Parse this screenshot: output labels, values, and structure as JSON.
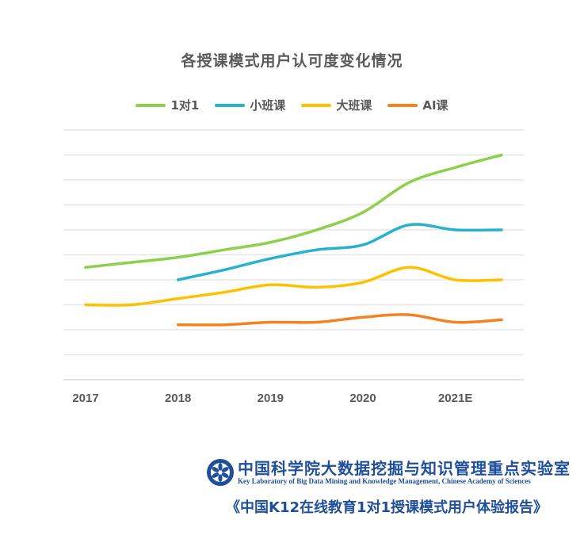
{
  "chart_data": {
    "type": "line",
    "title": "各授课模式用户认可度变化情况",
    "xlabel": "",
    "ylabel": "",
    "x_tick_labels": [
      "2017",
      "2018",
      "2019",
      "2020",
      "2021E"
    ],
    "x": [
      2017,
      2017.5,
      2018,
      2018.5,
      2019,
      2019.5,
      2020,
      2020.5,
      2021,
      2021.5
    ],
    "ylim": [
      0,
      10
    ],
    "y_tick_labels_visible": false,
    "grid": true,
    "legend": "top-center",
    "smooth": true,
    "series": [
      {
        "name": "1对1",
        "color": "#8dd04b",
        "values": [
          4.5,
          4.7,
          4.9,
          5.2,
          5.5,
          6.0,
          6.7,
          7.9,
          8.5,
          9.0
        ]
      },
      {
        "name": "小班课",
        "color": "#27b1cf",
        "values": [
          null,
          null,
          4.0,
          4.4,
          4.85,
          5.2,
          5.4,
          6.2,
          6.0,
          6.0
        ]
      },
      {
        "name": "大班课",
        "color": "#ffc000",
        "values": [
          3.0,
          3.0,
          3.25,
          3.5,
          3.8,
          3.7,
          3.9,
          4.5,
          4.0,
          4.0
        ]
      },
      {
        "name": "AI课",
        "color": "#f5821f",
        "values": [
          null,
          null,
          2.2,
          2.2,
          2.3,
          2.3,
          2.5,
          2.6,
          2.3,
          2.4
        ]
      }
    ]
  },
  "footer": {
    "lab_name_cn": "中国科学院大数据挖掘与知识管理重点实验室",
    "lab_name_en": "Key Laboratory of Big Data Mining and Knowledge Management, Chinese Academy of Sciences",
    "report_title": "《中国K12在线教育1对1授课模式用户体验报告》",
    "logo_icon": "cas-logo-icon"
  }
}
